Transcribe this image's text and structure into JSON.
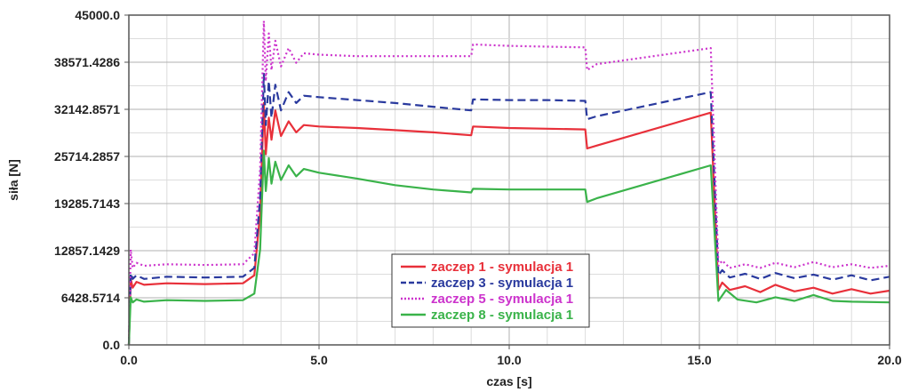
{
  "chart_data": {
    "type": "line",
    "title": "",
    "xlabel": "czas [s]",
    "ylabel": "siła [N]",
    "xlim": [
      0,
      20
    ],
    "ylim": [
      0,
      45000
    ],
    "x_ticks": [
      0,
      5,
      10,
      15,
      20
    ],
    "x_tick_labels": [
      "0.0",
      "5.0",
      "10.0",
      "15.0",
      "20.0"
    ],
    "y_ticks": [
      0,
      6428.5714,
      12857.1429,
      19285.7143,
      25714.2857,
      32142.8571,
      38571.4286,
      45000
    ],
    "y_tick_labels": [
      "0.0",
      "6428.5714",
      "12857.1429",
      "19285.7143",
      "25714.2857",
      "32142.8571",
      "38571.4286",
      "45000.0"
    ],
    "grid": true,
    "legend_position": "bottom-center",
    "series": [
      {
        "name": "zaczep 1 - symulacja 1",
        "color": "#e8303a",
        "dash": "solid",
        "points": [
          [
            0,
            0
          ],
          [
            0.05,
            9000
          ],
          [
            0.1,
            7800
          ],
          [
            0.2,
            8600
          ],
          [
            0.4,
            8200
          ],
          [
            1,
            8400
          ],
          [
            2,
            8300
          ],
          [
            3,
            8400
          ],
          [
            3.3,
            9500
          ],
          [
            3.45,
            18000
          ],
          [
            3.55,
            33000
          ],
          [
            3.6,
            26000
          ],
          [
            3.68,
            31000
          ],
          [
            3.75,
            28000
          ],
          [
            3.85,
            32000
          ],
          [
            4.0,
            28500
          ],
          [
            4.2,
            30500
          ],
          [
            4.4,
            29000
          ],
          [
            4.6,
            30000
          ],
          [
            5,
            29800
          ],
          [
            6,
            29600
          ],
          [
            7,
            29300
          ],
          [
            8,
            29000
          ],
          [
            9,
            28600
          ],
          [
            9.05,
            29800
          ],
          [
            10,
            29600
          ],
          [
            11,
            29500
          ],
          [
            12,
            29400
          ],
          [
            12.05,
            26800
          ],
          [
            12.3,
            27200
          ],
          [
            15.3,
            31700
          ],
          [
            15.5,
            7500
          ],
          [
            15.6,
            8500
          ],
          [
            15.8,
            7500
          ],
          [
            16.2,
            8000
          ],
          [
            16.6,
            7200
          ],
          [
            17,
            8200
          ],
          [
            17.5,
            7300
          ],
          [
            18,
            7800
          ],
          [
            18.5,
            7000
          ],
          [
            19,
            7600
          ],
          [
            19.5,
            7000
          ],
          [
            20,
            7400
          ]
        ]
      },
      {
        "name": "zaczep 3 - symulacja 1",
        "color": "#2a3a9e",
        "dash": "dashed",
        "points": [
          [
            0,
            0
          ],
          [
            0.05,
            9800
          ],
          [
            0.1,
            9000
          ],
          [
            0.2,
            9500
          ],
          [
            0.4,
            9000
          ],
          [
            1,
            9300
          ],
          [
            2,
            9200
          ],
          [
            3,
            9300
          ],
          [
            3.3,
            10500
          ],
          [
            3.45,
            20000
          ],
          [
            3.55,
            37000
          ],
          [
            3.6,
            30000
          ],
          [
            3.68,
            36000
          ],
          [
            3.75,
            31000
          ],
          [
            3.85,
            35500
          ],
          [
            4.0,
            32000
          ],
          [
            4.2,
            34500
          ],
          [
            4.4,
            33000
          ],
          [
            4.6,
            34000
          ],
          [
            5,
            33800
          ],
          [
            6,
            33400
          ],
          [
            7,
            33000
          ],
          [
            8,
            32500
          ],
          [
            9,
            32000
          ],
          [
            9.05,
            33500
          ],
          [
            10,
            33400
          ],
          [
            11,
            33400
          ],
          [
            12,
            33300
          ],
          [
            12.05,
            30800
          ],
          [
            12.3,
            31200
          ],
          [
            15.3,
            34500
          ],
          [
            15.5,
            9500
          ],
          [
            15.6,
            10200
          ],
          [
            15.8,
            9200
          ],
          [
            16.2,
            9700
          ],
          [
            16.6,
            9000
          ],
          [
            17,
            9800
          ],
          [
            17.5,
            9100
          ],
          [
            18,
            9600
          ],
          [
            18.5,
            8900
          ],
          [
            19,
            9500
          ],
          [
            19.5,
            8800
          ],
          [
            20,
            9300
          ]
        ]
      },
      {
        "name": "zaczep 5 - symulacja 1",
        "color": "#cc33cc",
        "dash": "dotted",
        "points": [
          [
            0,
            0
          ],
          [
            0.05,
            13000
          ],
          [
            0.1,
            10500
          ],
          [
            0.2,
            11200
          ],
          [
            0.4,
            10800
          ],
          [
            1,
            11000
          ],
          [
            2,
            10900
          ],
          [
            3,
            11000
          ],
          [
            3.3,
            12500
          ],
          [
            3.45,
            24000
          ],
          [
            3.55,
            44200
          ],
          [
            3.6,
            36000
          ],
          [
            3.68,
            42500
          ],
          [
            3.75,
            37500
          ],
          [
            3.85,
            41500
          ],
          [
            4.0,
            38000
          ],
          [
            4.2,
            40500
          ],
          [
            4.4,
            38500
          ],
          [
            4.6,
            39800
          ],
          [
            5,
            39600
          ],
          [
            6,
            39400
          ],
          [
            7,
            39400
          ],
          [
            8,
            39400
          ],
          [
            9,
            39400
          ],
          [
            9.05,
            41000
          ],
          [
            10,
            40800
          ],
          [
            11,
            40700
          ],
          [
            12,
            40600
          ],
          [
            12.05,
            37500
          ],
          [
            12.3,
            38300
          ],
          [
            15.3,
            40500
          ],
          [
            15.5,
            10800
          ],
          [
            15.6,
            11500
          ],
          [
            15.8,
            10500
          ],
          [
            16.2,
            11000
          ],
          [
            16.6,
            10500
          ],
          [
            17,
            11200
          ],
          [
            17.5,
            10600
          ],
          [
            18,
            11300
          ],
          [
            18.5,
            10600
          ],
          [
            19,
            11000
          ],
          [
            19.5,
            10500
          ],
          [
            20,
            10800
          ]
        ]
      },
      {
        "name": "zaczep 8 - symulacja 1",
        "color": "#3ab34a",
        "dash": "solid",
        "points": [
          [
            0,
            0
          ],
          [
            0.05,
            6500
          ],
          [
            0.1,
            5800
          ],
          [
            0.2,
            6200
          ],
          [
            0.4,
            5900
          ],
          [
            1,
            6100
          ],
          [
            2,
            6000
          ],
          [
            3,
            6100
          ],
          [
            3.3,
            7000
          ],
          [
            3.45,
            13000
          ],
          [
            3.55,
            26500
          ],
          [
            3.6,
            21000
          ],
          [
            3.68,
            25500
          ],
          [
            3.75,
            22000
          ],
          [
            3.85,
            25000
          ],
          [
            4.0,
            22500
          ],
          [
            4.2,
            24500
          ],
          [
            4.4,
            23000
          ],
          [
            4.6,
            24000
          ],
          [
            5,
            23500
          ],
          [
            6,
            22700
          ],
          [
            7,
            21800
          ],
          [
            8,
            21200
          ],
          [
            9,
            20800
          ],
          [
            9.05,
            21300
          ],
          [
            10,
            21200
          ],
          [
            11,
            21200
          ],
          [
            12,
            21200
          ],
          [
            12.05,
            19500
          ],
          [
            12.3,
            20000
          ],
          [
            15.3,
            24500
          ],
          [
            15.5,
            6000
          ],
          [
            15.7,
            7500
          ],
          [
            16,
            6200
          ],
          [
            16.5,
            5800
          ],
          [
            17,
            6500
          ],
          [
            17.5,
            6000
          ],
          [
            18,
            6800
          ],
          [
            18.5,
            6000
          ],
          [
            19,
            5900
          ],
          [
            20,
            5800
          ]
        ]
      }
    ]
  }
}
